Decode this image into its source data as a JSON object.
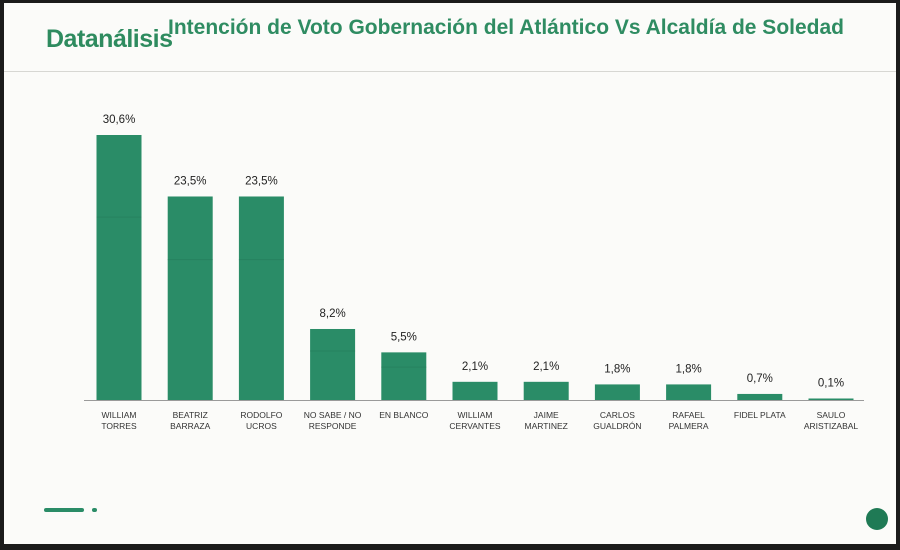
{
  "brand": "Datanálisis",
  "title": "Intención de Voto Gobernación del Atlántico Vs Alcaldía de Soledad",
  "colors": {
    "bar": "#2a8c67",
    "title": "#2f8c62",
    "background": "#fbfbf9"
  },
  "chart_data": {
    "type": "bar",
    "title": "Intención de Voto Gobernación del Atlántico Vs Alcaldía de Soledad",
    "categories": [
      [
        "WILLIAM",
        "TORRES"
      ],
      [
        "BEATRIZ",
        "BARRAZA"
      ],
      [
        "RODOLFO",
        "UCROS"
      ],
      [
        "NO SABE / NO",
        "RESPONDE"
      ],
      [
        "EN BLANCO"
      ],
      [
        "WILLIAM",
        "CERVANTES"
      ],
      [
        "JAIME",
        "MARTINEZ"
      ],
      [
        "CARLOS",
        "GUALDRÓN"
      ],
      [
        "RAFAEL",
        "PALMERA"
      ],
      [
        "FIDEL PLATA"
      ],
      [
        "SAULO",
        "ARISTIZABAL"
      ]
    ],
    "values": [
      30.6,
      23.5,
      23.5,
      8.2,
      5.5,
      2.1,
      2.1,
      1.8,
      1.8,
      0.7,
      0.1
    ],
    "value_labels": [
      "30,6%",
      "23,5%",
      "23,5%",
      "8,2%",
      "5,5%",
      "2,1%",
      "2,1%",
      "1,8%",
      "1,8%",
      "0,7%",
      "0,1%"
    ],
    "xlabel": "",
    "ylabel": "",
    "ylim": [
      0,
      30.6
    ],
    "grid": false,
    "legend": "none"
  }
}
